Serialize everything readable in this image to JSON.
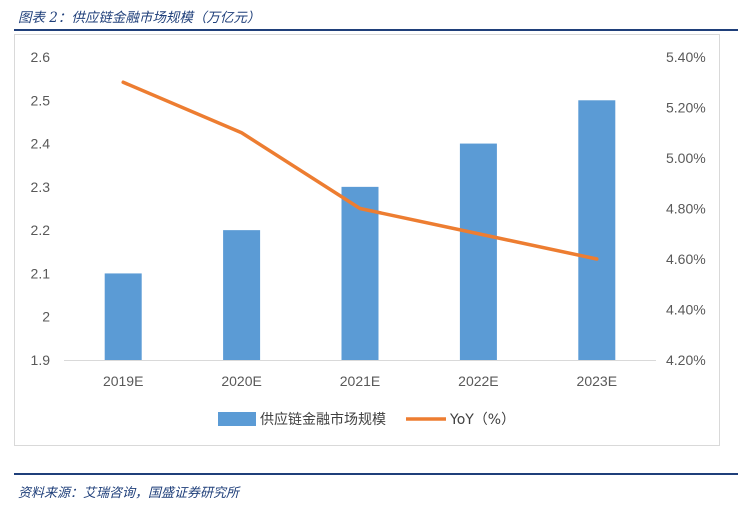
{
  "caption": "图表 2：供应链金融市场规模（万亿元）",
  "source": "资料来源：艾瑞咨询，国盛证券研究所",
  "colors": {
    "bar": "#5b9bd5",
    "line": "#ed7d31",
    "accent": "#1f3f7a"
  },
  "chart_data": {
    "type": "bar",
    "categories": [
      "2019E",
      "2020E",
      "2021E",
      "2022E",
      "2023E"
    ],
    "series": [
      {
        "name": "供应链金融市场规模",
        "type": "bar",
        "axis": "left",
        "values": [
          2.1,
          2.2,
          2.3,
          2.4,
          2.5
        ]
      },
      {
        "name": "YoY（%）",
        "type": "line",
        "axis": "right",
        "values": [
          5.3,
          5.1,
          4.8,
          4.7,
          4.6
        ]
      }
    ],
    "y_left": {
      "min": 1.9,
      "max": 2.6,
      "ticks": [
        "2.6",
        "2.5",
        "2.4",
        "2.3",
        "2.2",
        "2.1",
        "2",
        "1.9"
      ]
    },
    "y_right": {
      "min": 4.2,
      "max": 5.4,
      "ticks": [
        "5.40%",
        "5.20%",
        "5.00%",
        "4.80%",
        "4.60%",
        "4.40%",
        "4.20%"
      ]
    },
    "grid": false,
    "legend_position": "bottom"
  }
}
